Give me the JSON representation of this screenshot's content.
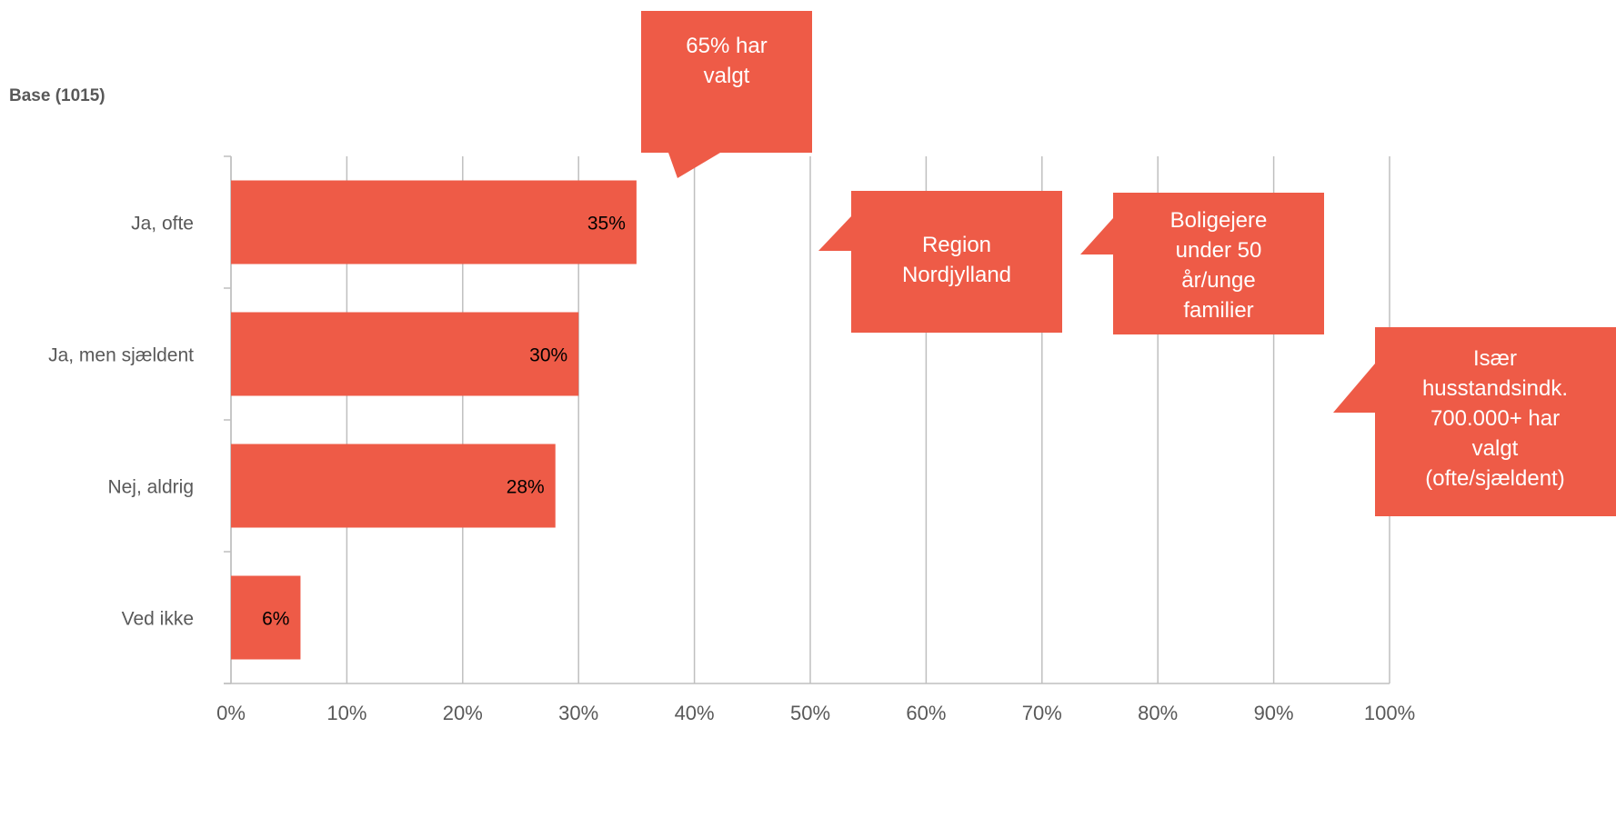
{
  "base_label": "Base (1015)",
  "colors": {
    "bar": "#EE5B47",
    "grid": "#BFBFBF",
    "axis_text": "#595959",
    "label_text": "#000000"
  },
  "chart_data": {
    "type": "bar",
    "orientation": "horizontal",
    "categories": [
      "Ja, ofte",
      "Ja, men sjældent",
      "Nej, aldrig",
      "Ved ikke"
    ],
    "values": [
      35,
      30,
      28,
      6
    ],
    "value_labels": [
      "35%",
      "30%",
      "28%",
      "6%"
    ],
    "xlim": [
      0,
      100
    ],
    "x_ticks": [
      "0%",
      "10%",
      "20%",
      "30%",
      "40%",
      "50%",
      "60%",
      "70%",
      "80%",
      "90%",
      "100%"
    ],
    "grid": "vertical",
    "annotations": [
      {
        "lines": [
          "65% har",
          "valgt"
        ]
      },
      {
        "lines": [
          "Region",
          "Nordjylland"
        ]
      },
      {
        "lines": [
          "Boligejere",
          "under 50",
          "år/unge",
          "familier"
        ]
      },
      {
        "lines": [
          "Især",
          "husstandsindk.",
          "700.000+ har",
          "valgt",
          "(ofte/sjældent)"
        ]
      }
    ]
  }
}
